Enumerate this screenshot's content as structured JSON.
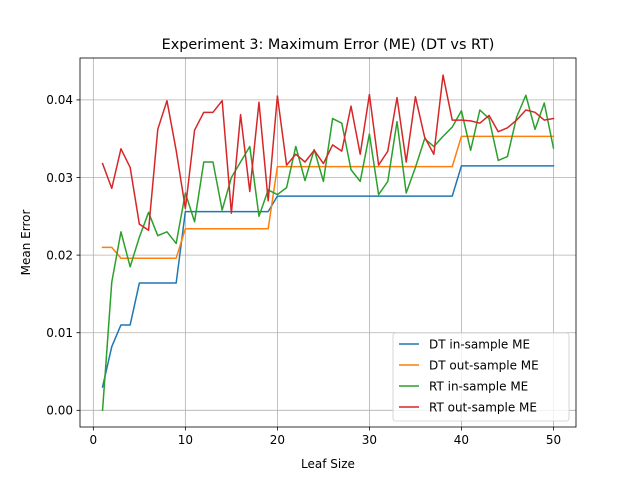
{
  "chart_data": {
    "type": "line",
    "title": "Experiment 3: Maximum Error (ME) (DT vs RT)",
    "xlabel": "Leaf Size",
    "ylabel": "Mean Error",
    "xlim": [
      -1.45,
      52.45
    ],
    "ylim": [
      -0.00215,
      0.0454
    ],
    "xticks": [
      "0",
      "10",
      "20",
      "30",
      "40",
      "50"
    ],
    "yticks": [
      "0.00",
      "0.01",
      "0.02",
      "0.03",
      "0.04"
    ],
    "grid": true,
    "legend_position": "lower-right",
    "x": [
      1,
      2,
      3,
      4,
      5,
      6,
      7,
      8,
      9,
      10,
      11,
      12,
      13,
      14,
      15,
      16,
      17,
      18,
      19,
      20,
      21,
      22,
      23,
      24,
      25,
      26,
      27,
      28,
      29,
      30,
      31,
      32,
      33,
      34,
      35,
      36,
      37,
      38,
      39,
      40,
      41,
      42,
      43,
      44,
      45,
      46,
      47,
      48,
      49,
      50
    ],
    "series": [
      {
        "name": "DT in-sample ME",
        "color": "#1f77b4",
        "values": [
          0.003,
          0.0082,
          0.011,
          0.011,
          0.0164,
          0.0164,
          0.0164,
          0.0164,
          0.0164,
          0.0256,
          0.0256,
          0.0256,
          0.0256,
          0.0256,
          0.0256,
          0.0256,
          0.0256,
          0.0256,
          0.0256,
          0.0276,
          0.0276,
          0.0276,
          0.0276,
          0.0276,
          0.0276,
          0.0276,
          0.0276,
          0.0276,
          0.0276,
          0.0276,
          0.0276,
          0.0276,
          0.0276,
          0.0276,
          0.0276,
          0.0276,
          0.0276,
          0.0276,
          0.0276,
          0.0315,
          0.0315,
          0.0315,
          0.0315,
          0.0315,
          0.0315,
          0.0315,
          0.0315,
          0.0315,
          0.0315,
          0.0315
        ]
      },
      {
        "name": "DT out-sample ME",
        "color": "#ff7f0e",
        "values": [
          0.021,
          0.021,
          0.0196,
          0.0196,
          0.0196,
          0.0196,
          0.0196,
          0.0196,
          0.0196,
          0.0234,
          0.0234,
          0.0234,
          0.0234,
          0.0234,
          0.0234,
          0.0234,
          0.0234,
          0.0234,
          0.0234,
          0.0314,
          0.0314,
          0.0314,
          0.0314,
          0.0314,
          0.0314,
          0.0314,
          0.0314,
          0.0314,
          0.0314,
          0.0314,
          0.0314,
          0.0314,
          0.0314,
          0.0314,
          0.0314,
          0.0314,
          0.0314,
          0.0314,
          0.0314,
          0.0353,
          0.0353,
          0.0353,
          0.0353,
          0.0353,
          0.0353,
          0.0353,
          0.0353,
          0.0353,
          0.0353,
          0.0353
        ]
      },
      {
        "name": "RT in-sample ME",
        "color": "#2ca02c",
        "values": [
          0.0,
          0.0165,
          0.023,
          0.0185,
          0.0223,
          0.0255,
          0.0225,
          0.023,
          0.0215,
          0.028,
          0.0243,
          0.032,
          0.032,
          0.0258,
          0.03,
          0.032,
          0.034,
          0.025,
          0.0284,
          0.0278,
          0.0287,
          0.034,
          0.0296,
          0.0336,
          0.0295,
          0.0376,
          0.037,
          0.031,
          0.0295,
          0.0356,
          0.0278,
          0.0295,
          0.0372,
          0.028,
          0.0313,
          0.035,
          0.034,
          0.0353,
          0.0365,
          0.0386,
          0.0335,
          0.0387,
          0.0376,
          0.0322,
          0.0327,
          0.0378,
          0.0406,
          0.0362,
          0.0396,
          0.0338
        ]
      },
      {
        "name": "RT out-sample ME",
        "color": "#d62728",
        "values": [
          0.0318,
          0.0286,
          0.0337,
          0.0313,
          0.024,
          0.0232,
          0.0362,
          0.0399,
          0.0335,
          0.026,
          0.0361,
          0.0384,
          0.0384,
          0.0399,
          0.0254,
          0.0381,
          0.0282,
          0.0397,
          0.027,
          0.0405,
          0.0316,
          0.033,
          0.032,
          0.0335,
          0.0318,
          0.0342,
          0.0334,
          0.0392,
          0.033,
          0.0407,
          0.0316,
          0.0334,
          0.0403,
          0.032,
          0.0404,
          0.0352,
          0.033,
          0.0432,
          0.0374,
          0.0374,
          0.0373,
          0.037,
          0.038,
          0.0359,
          0.0364,
          0.0374,
          0.0387,
          0.0384,
          0.0374,
          0.0376
        ]
      }
    ]
  }
}
